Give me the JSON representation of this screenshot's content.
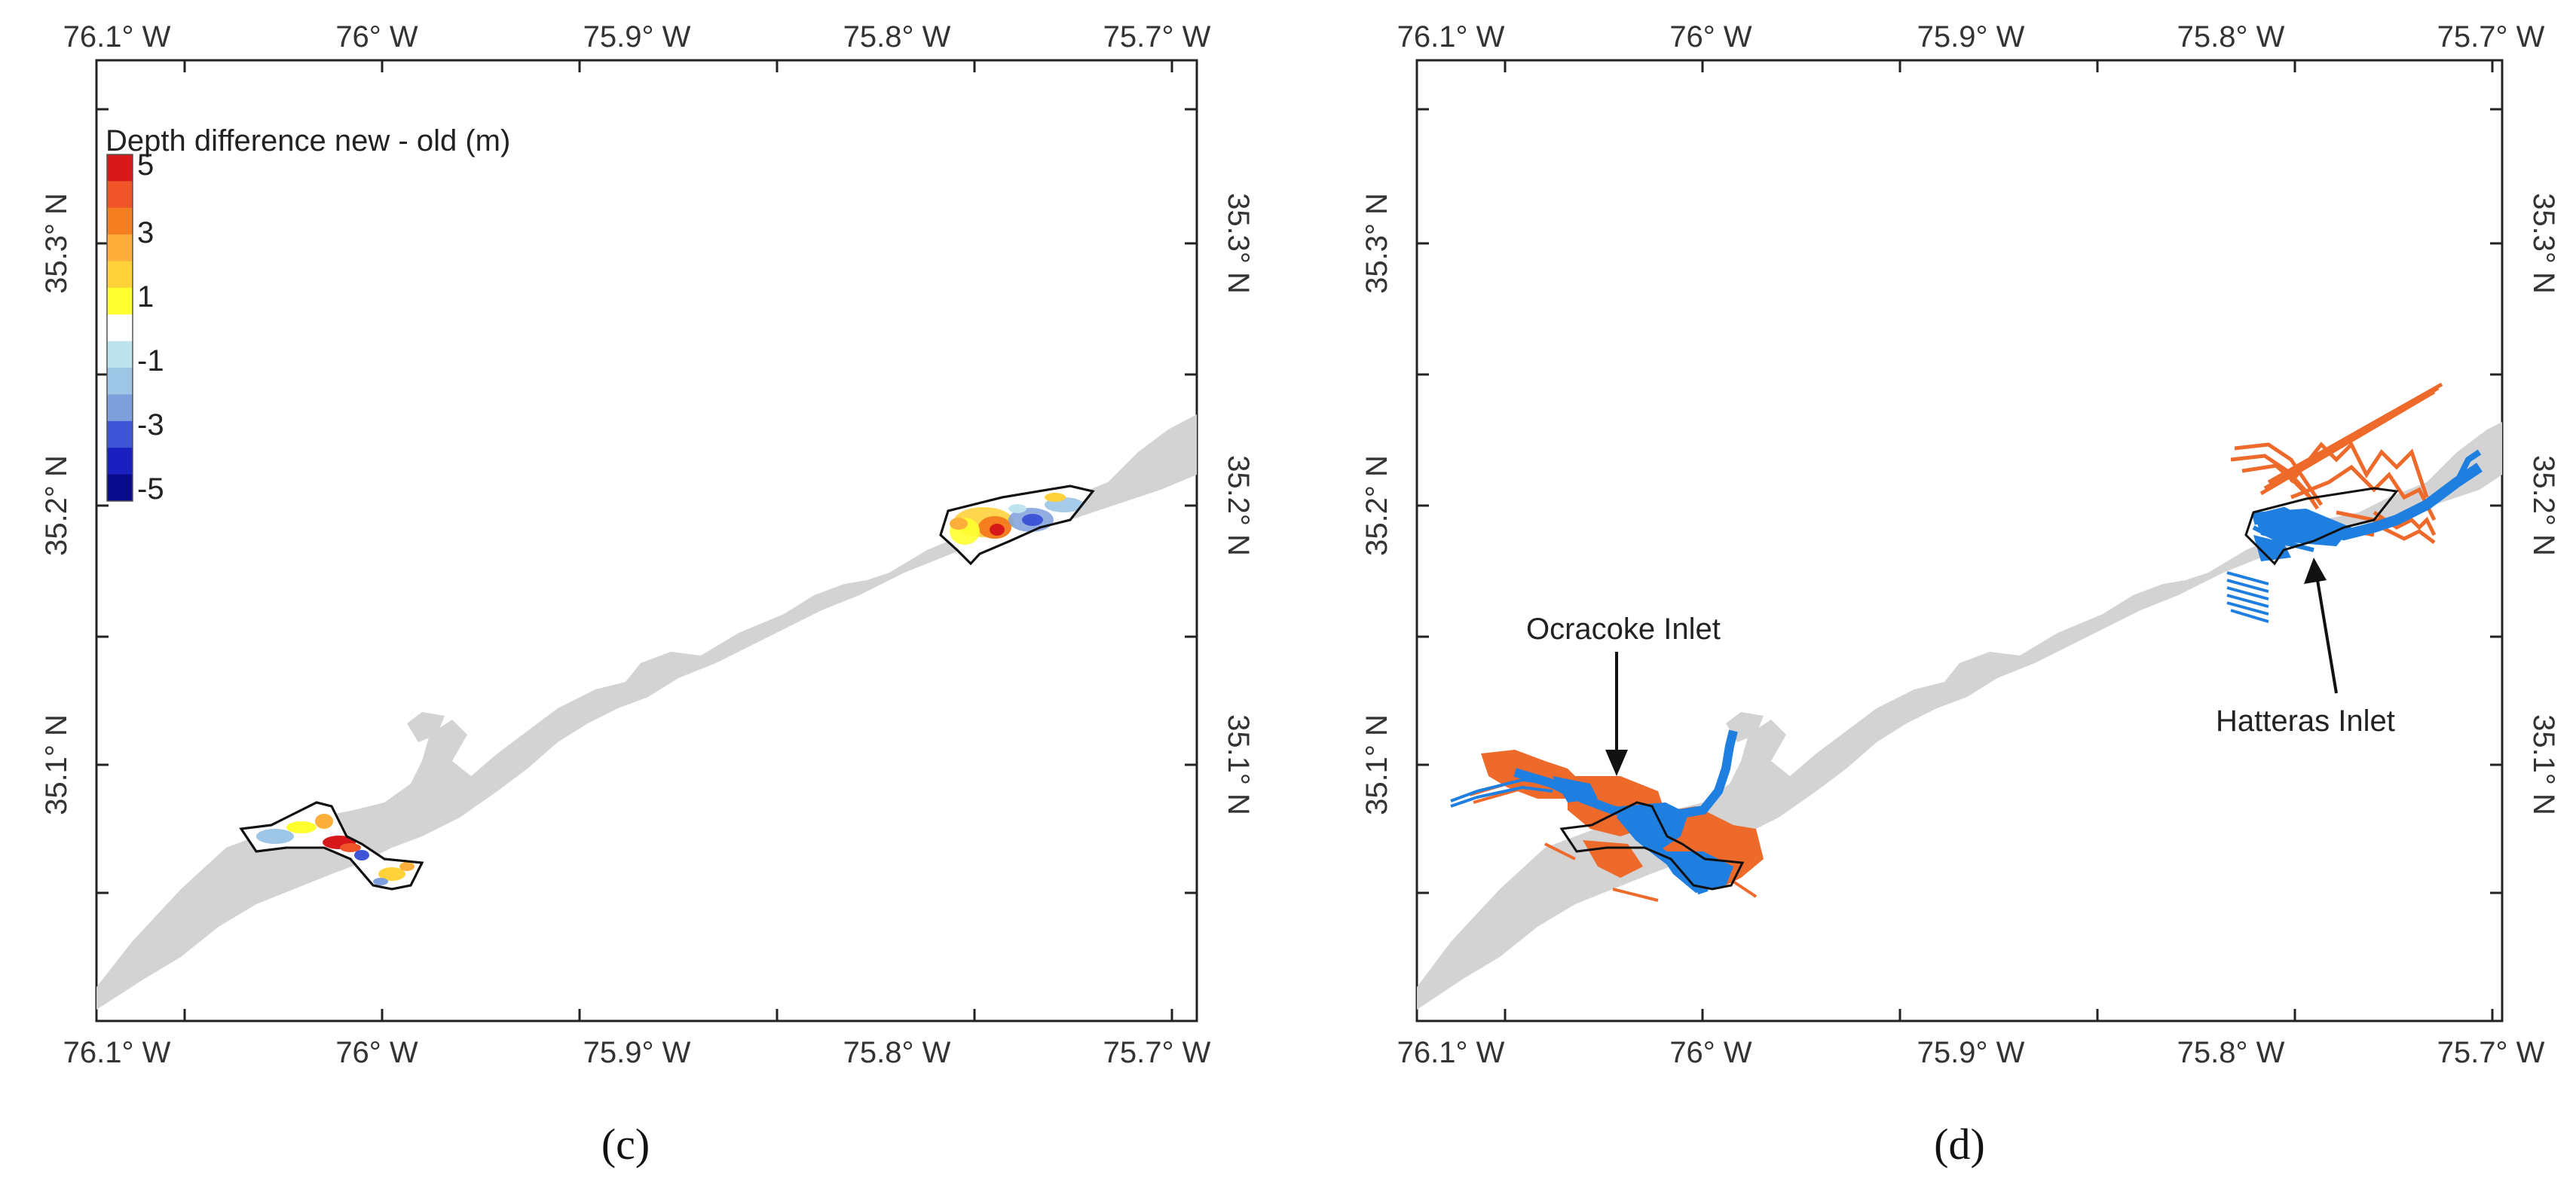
{
  "panels": [
    {
      "id": "c",
      "label": "(c)",
      "x_ticks": [
        "76.1° W",
        "76° W",
        "75.9° W",
        "75.8° W",
        "75.7° W"
      ],
      "y_ticks": [
        "35.3° N",
        "35.2° N",
        "35.1° N"
      ]
    },
    {
      "id": "d",
      "label": "(d)",
      "x_ticks": [
        "76.1° W",
        "76° W",
        "75.9° W",
        "75.8° W",
        "75.7° W"
      ],
      "y_ticks": [
        "35.3° N",
        "35.2° N",
        "35.1° N"
      ]
    }
  ],
  "legend": {
    "title": "Depth difference new - old (m)",
    "values": [
      "5",
      "3",
      "1",
      "-1",
      "-3",
      "-5"
    ],
    "colors": [
      "#d7191c",
      "#f0552a",
      "#f57f20",
      "#fdae3b",
      "#ffd23a",
      "#ffff30",
      "#ffffff",
      "#bfe3ee",
      "#9cc5e6",
      "#7e9fdc",
      "#3e55d8",
      "#1a1fc0",
      "#0a0a8c"
    ]
  },
  "annotations": {
    "ocracoke": "Ocracoke Inlet",
    "hatteras": "Hatteras Inlet"
  },
  "colors": {
    "land": "#d3d3d3",
    "old_survey": "#ee6a2a",
    "new_survey": "#1f7fe0"
  }
}
